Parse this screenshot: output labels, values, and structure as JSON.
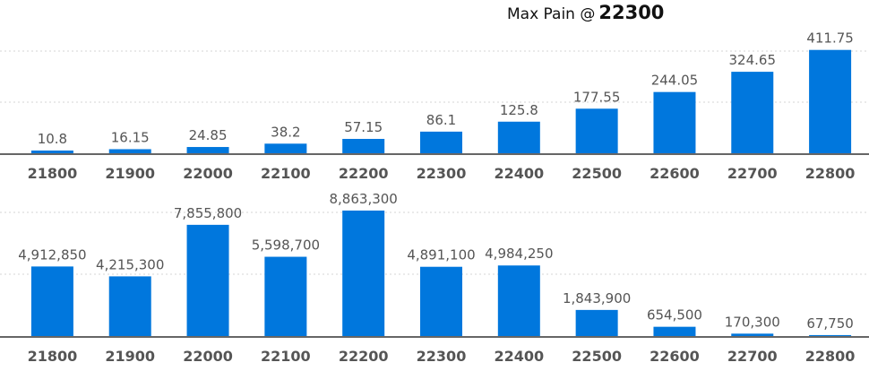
{
  "header": {
    "label": "Max Pain @",
    "value": "22300"
  },
  "chart_data": [
    {
      "type": "bar",
      "categories": [
        "21800",
        "21900",
        "22000",
        "22100",
        "22200",
        "22300",
        "22400",
        "22500",
        "22600",
        "22700",
        "22800"
      ],
      "values": [
        10.8,
        16.15,
        24.85,
        38.2,
        57.15,
        86.1,
        125.8,
        177.55,
        244.05,
        324.65,
        411.75
      ],
      "data_labels": [
        "10.8",
        "16.15",
        "24.85",
        "38.2",
        "57.15",
        "86.1",
        "125.8",
        "177.55",
        "244.05",
        "324.65",
        "411.75"
      ],
      "ylim": [
        0,
        450
      ],
      "grid": true,
      "color": "#0077dd"
    },
    {
      "type": "bar",
      "categories": [
        "21800",
        "21900",
        "22000",
        "22100",
        "22200",
        "22300",
        "22400",
        "22500",
        "22600",
        "22700",
        "22800"
      ],
      "values": [
        4912850,
        4215300,
        7855800,
        5598700,
        8863300,
        4891100,
        4984250,
        1843900,
        654500,
        170300,
        67750
      ],
      "data_labels": [
        "4,912,850",
        "4,215,300",
        "7,855,800",
        "5,598,700",
        "8,863,300",
        "4,891,100",
        "4,984,250",
        "1,843,900",
        "654,500",
        "170,300",
        "67,750"
      ],
      "ylim": [
        0,
        10000000
      ],
      "grid": true,
      "color": "#0077dd"
    }
  ]
}
